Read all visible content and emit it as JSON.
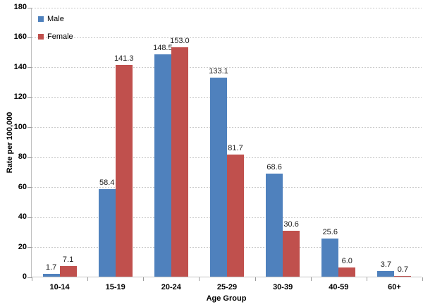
{
  "chart_data": {
    "type": "bar",
    "title": "",
    "xlabel": "Age Group",
    "ylabel": "Rate per 100,000",
    "categories": [
      "10-14",
      "15-19",
      "20-24",
      "25-29",
      "30-39",
      "40-59",
      "60+"
    ],
    "series": [
      {
        "name": "Male",
        "color": "#4F81BD",
        "values": [
          1.7,
          58.4,
          148.5,
          133.1,
          68.6,
          25.6,
          3.7
        ]
      },
      {
        "name": "Female",
        "color": "#C0504D",
        "values": [
          7.1,
          141.3,
          153.0,
          81.7,
          30.6,
          6.0,
          0.7
        ]
      }
    ],
    "ylim": [
      0,
      180
    ],
    "ytick_step": 20,
    "yticks": [
      0,
      20,
      40,
      60,
      80,
      100,
      120,
      140,
      160,
      180
    ],
    "grid": "horizontal-dashed",
    "legend_position": "top-left-inside",
    "data_labels": true,
    "data_label_decimals": 1
  },
  "colors": {
    "gridline": "#c9c9c9",
    "axis_line": "#bfbfbf",
    "tick_mark": "#9a9a9a",
    "background": "#ffffff"
  }
}
